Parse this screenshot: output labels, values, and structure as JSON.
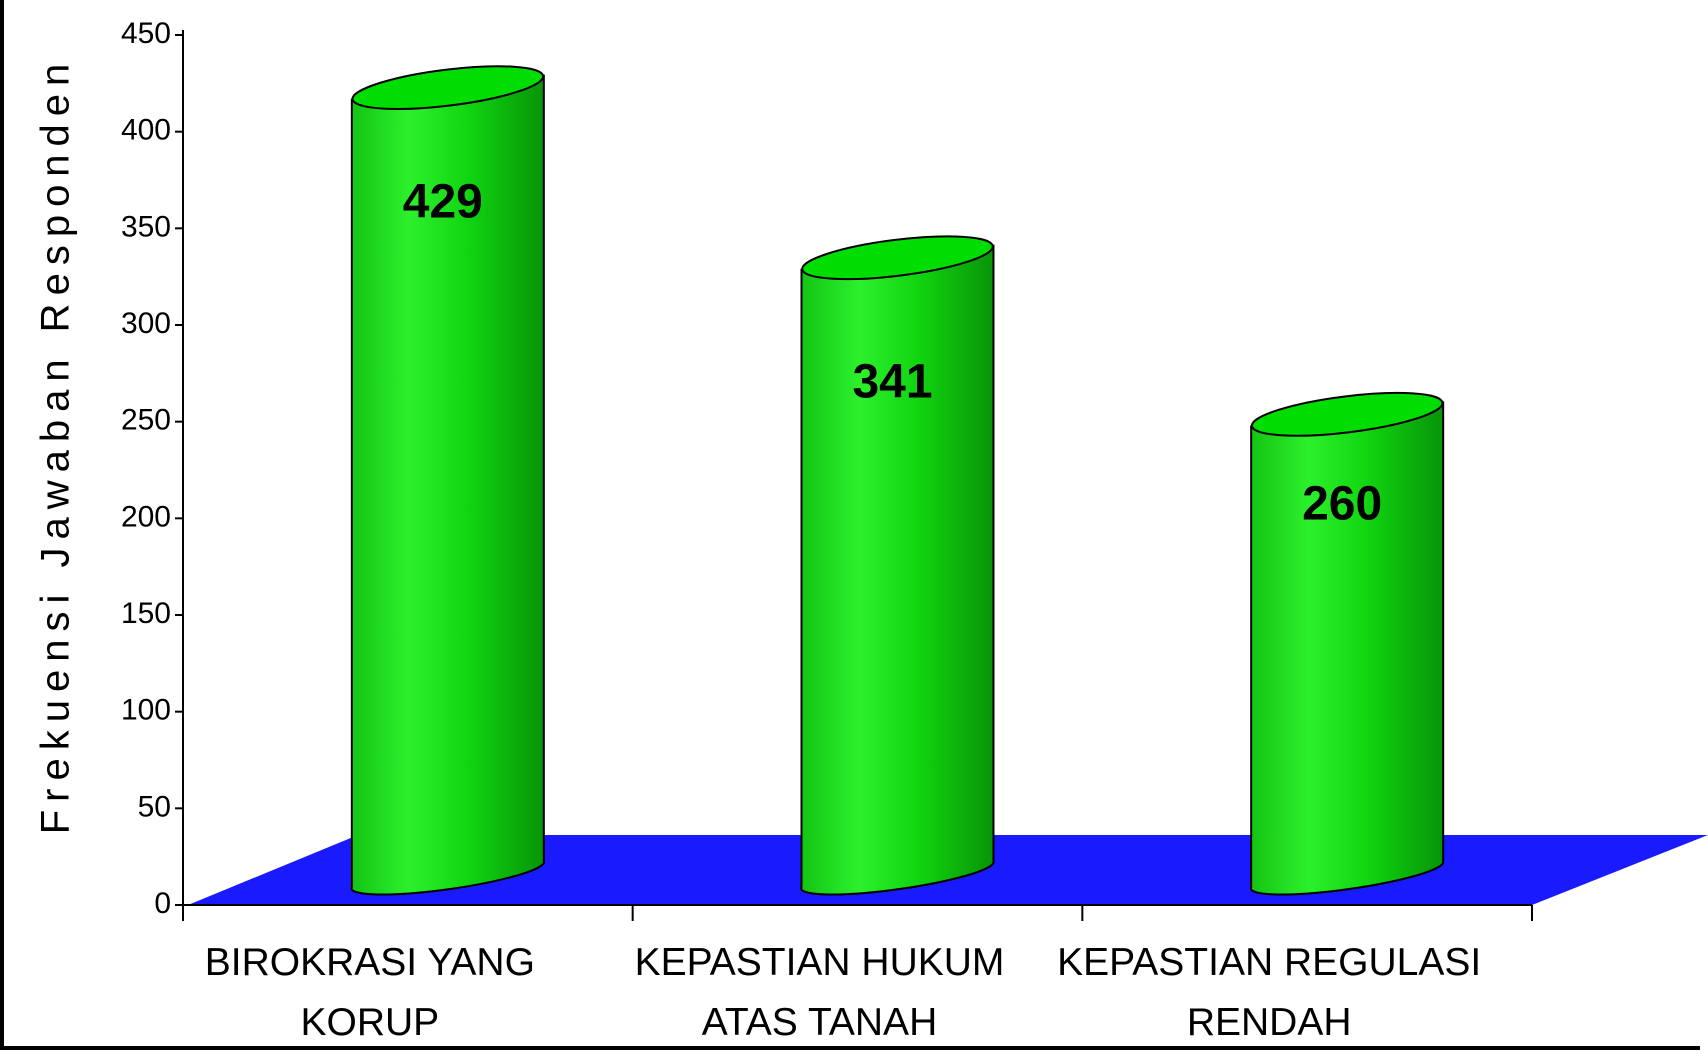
{
  "chart_data": {
    "type": "bar",
    "style": "3d-cylinder",
    "categories": [
      [
        "BIROKRASI YANG",
        "KORUP"
      ],
      [
        "KEPASTIAN HUKUM",
        "ATAS TANAH"
      ],
      [
        "KEPASTIAN REGULASI",
        "RENDAH"
      ]
    ],
    "values": [
      429,
      341,
      260
    ],
    "data_labels": [
      "429",
      "341",
      "260"
    ],
    "ylabel": "Frekuensi Jawaban Responden",
    "ylim": [
      0,
      450
    ],
    "yticks": [
      0,
      50,
      100,
      150,
      200,
      250,
      300,
      350,
      400,
      450
    ],
    "colors": {
      "bar": "#00dd00",
      "bar_dark": "#009a00",
      "bar_light": "#33f533",
      "floor": "#1a1aff"
    },
    "grid": false,
    "legend": "none"
  }
}
